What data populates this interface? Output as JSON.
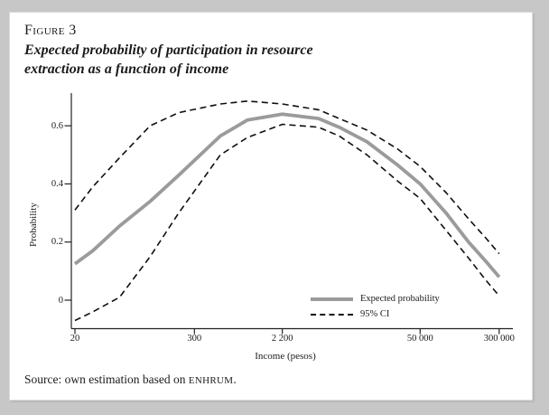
{
  "figure": {
    "label": "Figure 3",
    "title_lines": [
      "Expected probability of participation in resource",
      "extraction as a function of income"
    ],
    "source_prefix": "Source: own estimation based on ",
    "source_acronym": "ENHRUM",
    "source_suffix": "."
  },
  "colors": {
    "page_background": "#c7c7c7",
    "card_background": "#ffffff",
    "solid_line": "#9b9b9b",
    "ci_line": "#0f0f0f",
    "axis": "#222222"
  },
  "chart_data": {
    "type": "line",
    "x_scale": "log",
    "xlabel": "Income (pesos)",
    "ylabel": "Probability",
    "xlim": [
      20,
      300000
    ],
    "ylim": [
      -0.1,
      0.71
    ],
    "grid": false,
    "legend_position": "lower-right-inside",
    "x_ticks": [
      {
        "value": 20,
        "label": "20"
      },
      {
        "value": 300,
        "label": "300"
      },
      {
        "value": 2200,
        "label": "2 200"
      },
      {
        "value": 50000,
        "label": "50 000"
      },
      {
        "value": 300000,
        "label": "300 000"
      }
    ],
    "y_ticks": [
      {
        "value": 0,
        "label": "0"
      },
      {
        "value": 0.2,
        "label": "0.2"
      },
      {
        "value": 0.4,
        "label": "0.4"
      },
      {
        "value": 0.6,
        "label": "0.6"
      }
    ],
    "x": [
      20,
      30,
      55,
      110,
      210,
      540,
      1000,
      2200,
      5000,
      8000,
      15000,
      30000,
      50000,
      90000,
      150000,
      220000,
      300000
    ],
    "series": [
      {
        "name": "Expected probability",
        "style": "solid",
        "color": "#9b9b9b",
        "values": [
          0.125,
          0.17,
          0.255,
          0.34,
          0.43,
          0.565,
          0.62,
          0.64,
          0.625,
          0.595,
          0.545,
          0.465,
          0.4,
          0.3,
          0.2,
          0.135,
          0.08
        ]
      },
      {
        "name": "95% CI upper",
        "style": "dashed",
        "color": "#0f0f0f",
        "values": [
          0.31,
          0.39,
          0.49,
          0.6,
          0.645,
          0.675,
          0.685,
          0.675,
          0.655,
          0.625,
          0.585,
          0.52,
          0.46,
          0.37,
          0.28,
          0.215,
          0.16
        ]
      },
      {
        "name": "95% CI lower",
        "style": "dashed",
        "color": "#0f0f0f",
        "values": [
          -0.07,
          -0.04,
          0.01,
          0.15,
          0.3,
          0.5,
          0.56,
          0.605,
          0.595,
          0.565,
          0.5,
          0.41,
          0.35,
          0.24,
          0.145,
          0.07,
          0.015
        ]
      }
    ],
    "legend": [
      {
        "label": "Expected probability",
        "style": "solid"
      },
      {
        "label": "95% CI",
        "style": "dashed"
      }
    ]
  }
}
